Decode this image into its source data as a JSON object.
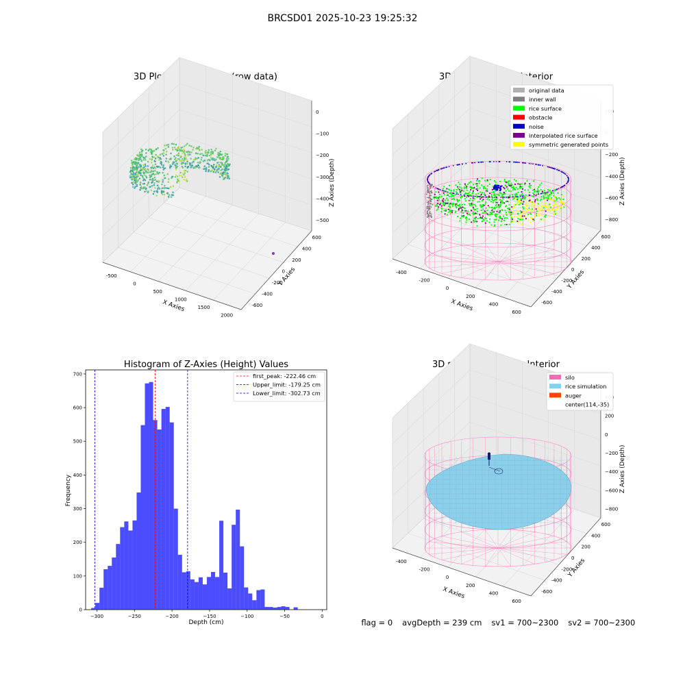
{
  "suptitle": "BRCSD01 2025-10-23 19:25:32",
  "status": {
    "flag": "flag = 0",
    "avg_depth": "avgDepth = 239 cm",
    "sv1": "sv1 = 700~2300",
    "sv2": "sv2 = 700~2300"
  },
  "colors": {
    "bars": "#0000ff",
    "first_peak": "#ff0000",
    "limits": "#0000cc",
    "silo": "#ff69b4",
    "rice_sim": "#87ceeb",
    "auger": "#ff4500",
    "inner_wall": "#808080",
    "rice_surface": "#00ff00",
    "obstacle": "#ff0000",
    "noise": "#0000cd",
    "interpolated": "#800080",
    "symmetric": "#ffff00",
    "original": "#b0b0b0"
  },
  "chart_data": [
    {
      "type": "scatter",
      "title": "3D Plot of Silo Interior(row data)",
      "xlabel": "X Axies",
      "ylabel": "Y Axies",
      "zlabel": "Z Axies (Depth)",
      "x_ticks": [
        "-500",
        "0",
        "500",
        "1000",
        "1500",
        "2000"
      ],
      "y_ticks": [
        "-600",
        "-400",
        "-200",
        "0",
        "200",
        "400",
        "600"
      ],
      "z_ticks": [
        "0",
        "−100",
        "−200",
        "−300",
        "−400",
        "−500"
      ]
    },
    {
      "type": "scatter",
      "title": "3D classify of Silo Interior",
      "xlabel": "X Axies",
      "ylabel": "Y Axies",
      "zlabel": "Z Axies (Depth)",
      "x_ticks": [
        "-400",
        "-200",
        "0",
        "200",
        "400",
        "600"
      ],
      "y_ticks": [
        "-600",
        "-400",
        "-200",
        "0",
        "200",
        "400",
        "600"
      ],
      "z_ticks": [
        "200",
        "0",
        "−200",
        "−400",
        "−600",
        "−800"
      ],
      "legend": [
        "original data",
        "inner wall",
        "rice surface",
        "obstacle",
        "noise",
        "interpolated rice surface",
        "symmetric generated points"
      ],
      "legend_position": "top-right"
    },
    {
      "type": "bar",
      "title": "Histogram of Z-Axies (Height) Values",
      "xlabel": "Depth (cm)",
      "ylabel": "Frequency",
      "xlim": [
        -315,
        6
      ],
      "ylim": [
        0,
        712
      ],
      "x_ticks": [
        -300,
        -250,
        -200,
        -150,
        -100,
        -50,
        0
      ],
      "y_ticks": [
        0,
        100,
        200,
        300,
        400,
        500,
        600,
        700
      ],
      "bin_width": 5.5,
      "bin_start": -307.6,
      "values": [
        5,
        20,
        65,
        120,
        130,
        155,
        195,
        245,
        262,
        235,
        265,
        348,
        548,
        672,
        676,
        563,
        535,
        596,
        602,
        556,
        300,
        163,
        111,
        114,
        90,
        82,
        96,
        75,
        97,
        112,
        97,
        264,
        110,
        63,
        252,
        297,
        188,
        66,
        48,
        28,
        58,
        60,
        8,
        8,
        6,
        8,
        10,
        8,
        0,
        7
      ],
      "lines": [
        {
          "label": "first_peak: -222.46 cm",
          "x": -222.46,
          "color": "#ff0000"
        },
        {
          "label": "Upper_limit: -179.25 cm",
          "x": -179.25,
          "color": "#0000cc"
        },
        {
          "label": "Lower_limit: -302.73 cm",
          "x": -302.73,
          "color": "#0000cc"
        }
      ],
      "legend_position": "top-right"
    },
    {
      "type": "scatter",
      "title": "3D simulation of Silo Interior",
      "xlabel": "X Axies",
      "ylabel": "Y Axies",
      "zlabel": "Z Axies (Depth)",
      "x_ticks": [
        "-400",
        "-200",
        "0",
        "200",
        "400",
        "600"
      ],
      "y_ticks": [
        "-600",
        "-400",
        "-200",
        "0",
        "200",
        "400",
        "600"
      ],
      "z_ticks": [
        "400",
        "200",
        "0",
        "−200",
        "−400",
        "−600",
        "−800"
      ],
      "legend": [
        "silo",
        "rice simulation",
        "auger",
        "center(114,-35)"
      ],
      "legend_position": "top-right"
    }
  ]
}
